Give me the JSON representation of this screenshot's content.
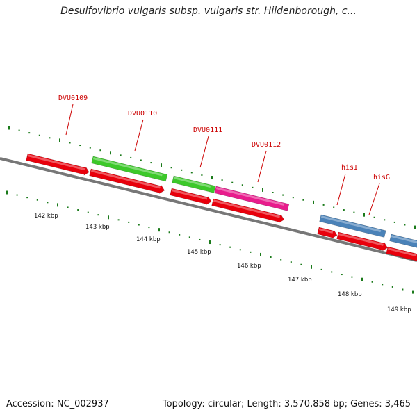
{
  "title": "Desulfovibrio vulgaris subsp. vulgaris str. Hildenborough, c...",
  "footer": {
    "accession": "Accession: NC_002937",
    "summary": "Topology: circular; Length: 3,570,858 bp; Genes: 3,465"
  },
  "colors": {
    "cds": "#e8000c",
    "gene_green": "#3cc82a",
    "gene_magenta": "#e81c8c",
    "gene_blue": "#4a82b8",
    "label": "#cc0000",
    "tick": "#1a7a1a",
    "backbone": "#777777"
  },
  "scale_labels": [
    "142 kbp",
    "143 kbp",
    "144 kbp",
    "145 kbp",
    "146 kbp",
    "147 kbp",
    "148 kbp",
    "149 kbp"
  ],
  "gene_labels": [
    {
      "name": "DVU0109",
      "feature": 1
    },
    {
      "name": "DVU0110",
      "feature": 2
    },
    {
      "name": "DVU0111",
      "feature": 3
    },
    {
      "name": "DVU0112",
      "feature": 4
    },
    {
      "name": "hisI",
      "feature": 6
    },
    {
      "name": "hisG",
      "feature": 7
    }
  ]
}
